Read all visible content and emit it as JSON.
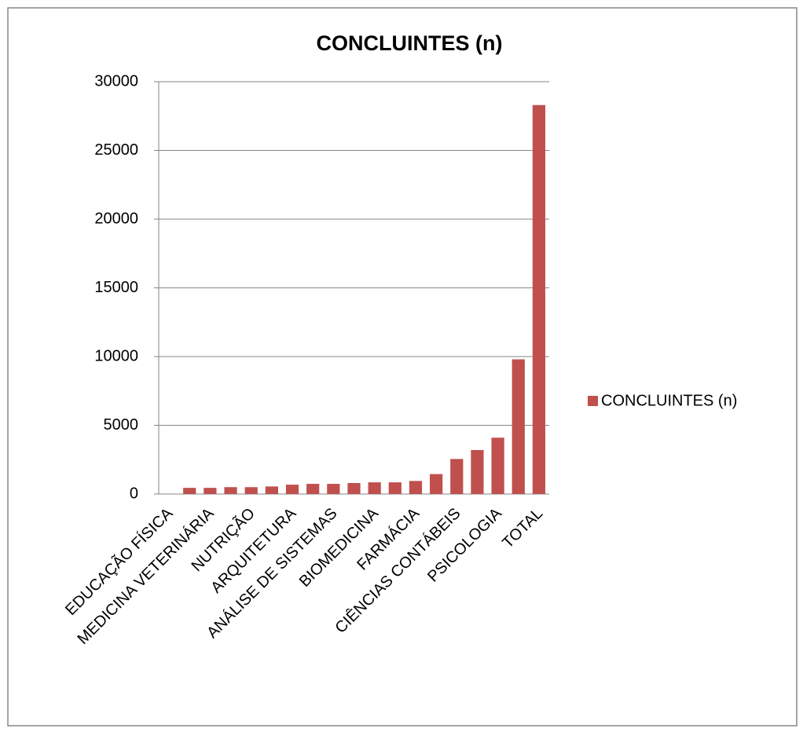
{
  "chart_data": {
    "type": "bar",
    "title": "CONCLUINTES (n)",
    "categories": [
      "EDUCAÇÃO FÍSICA",
      null,
      "MEDICINA VETERINÁRIA",
      null,
      "NUTRIÇÃO",
      null,
      "ARQUITETURA",
      null,
      "ANÁLISE DE SISTEMAS",
      null,
      "BIOMEDICINA",
      null,
      "FARMÁCIA",
      null,
      "CIÊNCIAS CONTÁBEIS",
      null,
      "PSICOLOGIA",
      null,
      "TOTAL"
    ],
    "series": [
      {
        "name": "CONCLUINTES (n)",
        "color": "#c0504d",
        "values": [
          0,
          450,
          450,
          500,
          500,
          550,
          680,
          740,
          740,
          800,
          850,
          850,
          950,
          1450,
          2550,
          3200,
          4100,
          9800,
          28300
        ]
      }
    ],
    "ylim": [
      0,
      30000
    ],
    "yticks": [
      0,
      5000,
      10000,
      15000,
      20000,
      25000,
      30000
    ],
    "grid": true,
    "legend": "right"
  }
}
